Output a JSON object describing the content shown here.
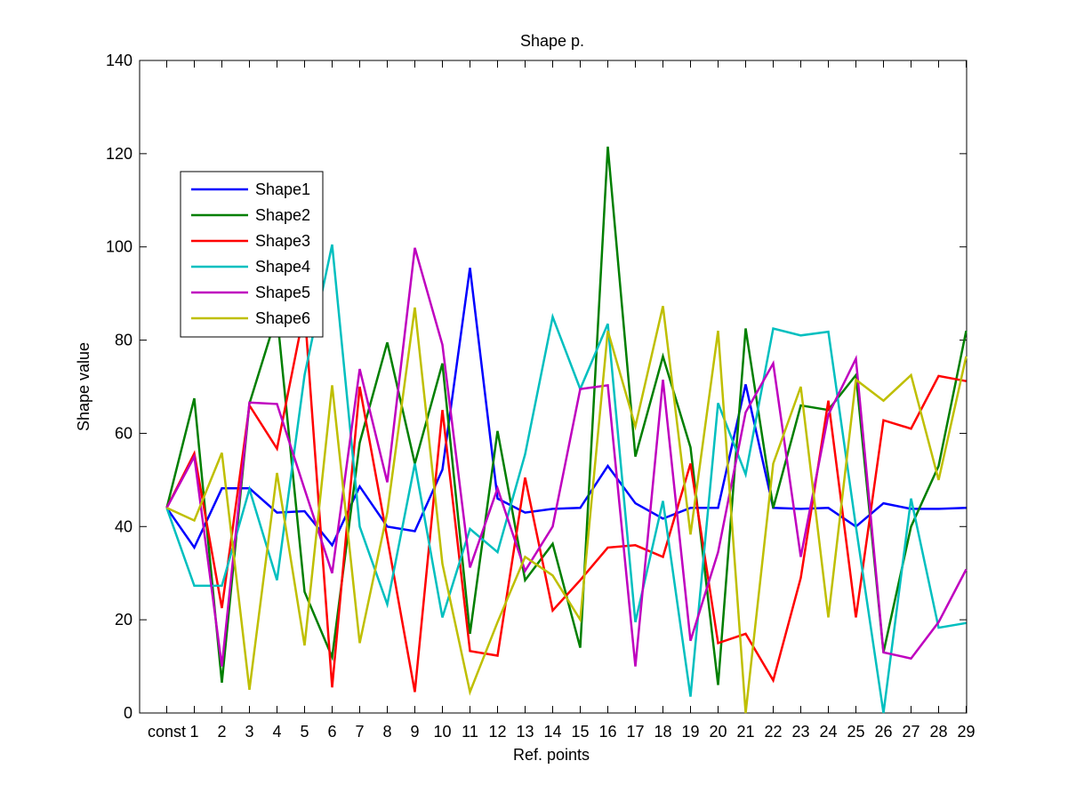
{
  "chart_data": {
    "type": "line",
    "title": "Shape p.",
    "xlabel": "Ref. points",
    "ylabel": "Shape value",
    "ylim": [
      0,
      140
    ],
    "yticks": [
      0,
      20,
      40,
      60,
      80,
      100,
      120,
      140
    ],
    "categories": [
      "const",
      "1",
      "2",
      "3",
      "4",
      "5",
      "6",
      "7",
      "8",
      "9",
      "10",
      "11",
      "12",
      "13",
      "14",
      "15",
      "16",
      "17",
      "18",
      "19",
      "20",
      "21",
      "22",
      "23",
      "24",
      "25",
      "26",
      "27",
      "28",
      "29"
    ],
    "legend_position": "upper-left",
    "grid": false,
    "series": [
      {
        "name": "Shape1",
        "color": "#0000ff",
        "values": [
          44,
          35.5,
          48.2,
          48.2,
          43,
          43.3,
          36,
          48.6,
          40,
          39,
          52.2,
          95.5,
          46,
          43,
          43.8,
          44,
          53,
          45,
          41.7,
          44,
          44,
          70.5,
          44,
          43.8,
          44,
          40,
          45,
          43.8,
          43.8,
          44
        ]
      },
      {
        "name": "Shape2",
        "color": "#007f00",
        "values": [
          44,
          67.5,
          6.5,
          66.4,
          85.5,
          26,
          12,
          58,
          79.5,
          53.5,
          75,
          17,
          60.5,
          28.5,
          36.3,
          14,
          121.5,
          55,
          76.5,
          57,
          6,
          82.5,
          44,
          66,
          65,
          72.5,
          13,
          40,
          53,
          82
        ]
      },
      {
        "name": "Shape3",
        "color": "#ff0000",
        "values": [
          44,
          55.7,
          22.5,
          66,
          56.7,
          86.5,
          5.5,
          70,
          37.5,
          4.5,
          65,
          13.3,
          12.3,
          50.5,
          22,
          28.5,
          35.5,
          36,
          33.5,
          53.5,
          15,
          17,
          7,
          29,
          67,
          20.5,
          62.8,
          61,
          72.3,
          71.2
        ]
      },
      {
        "name": "Shape4",
        "color": "#00bfbf",
        "values": [
          44,
          27.3,
          27.3,
          48,
          28.5,
          72.5,
          100.5,
          40,
          23.3,
          53.5,
          20.5,
          39.5,
          34.5,
          55.5,
          85,
          69.5,
          83.5,
          19.5,
          45.5,
          3.5,
          66.5,
          51.2,
          82.5,
          81,
          81.8,
          40,
          0,
          46,
          18.3,
          19.3
        ]
      },
      {
        "name": "Shape5",
        "color": "#bf00bf",
        "values": [
          44,
          55,
          10,
          66.6,
          66.3,
          48,
          30,
          73.8,
          49.5,
          99.8,
          79,
          31.2,
          48.2,
          30.5,
          40,
          69.5,
          70.3,
          10,
          71.5,
          15.5,
          34.5,
          64.5,
          75,
          33.5,
          64,
          76,
          13,
          11.7,
          19.5,
          30.8
        ]
      },
      {
        "name": "Shape6",
        "color": "#bfbf00",
        "values": [
          44,
          41.3,
          55.8,
          5,
          51.5,
          14.5,
          70.3,
          15,
          43,
          87,
          32,
          4.5,
          19.5,
          33.5,
          29.5,
          20,
          82,
          61.5,
          87.3,
          38.3,
          82,
          0,
          53.5,
          70,
          20.5,
          71.5,
          67,
          72.5,
          50,
          76.5
        ]
      }
    ]
  }
}
